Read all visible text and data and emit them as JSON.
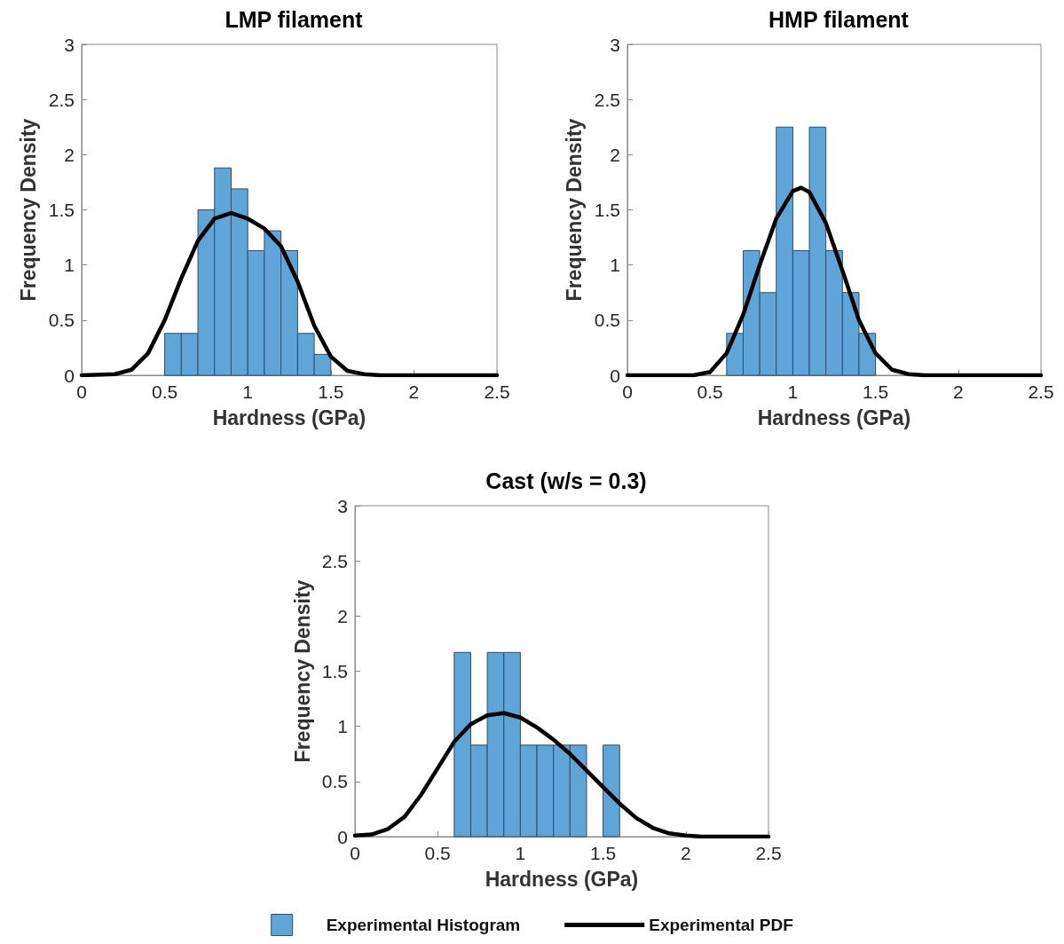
{
  "chart_data": [
    {
      "type": "histogram",
      "title": "LMP filament",
      "xlabel": "Hardness (GPa)",
      "ylabel": "Frequency Density",
      "xlim": [
        0,
        2.5
      ],
      "xticks": [
        0,
        0.5,
        1,
        1.5,
        2,
        2.5
      ],
      "ylim": [
        0,
        3
      ],
      "yticks": [
        0,
        0.5,
        1,
        1.5,
        2,
        2.5,
        3
      ],
      "grid": false,
      "legend": false,
      "series": [
        {
          "color": "#5fa5d8",
          "bins": [
            0.5,
            0.6,
            0.7,
            0.8,
            0.9,
            1.0,
            1.1,
            1.2,
            1.3,
            1.4,
            1.5
          ],
          "values": [
            0.38,
            0.38,
            1.5,
            1.88,
            1.69,
            1.13,
            1.31,
            1.13,
            0.38,
            0.19
          ]
        },
        {
          "type": "line",
          "color": "#000000",
          "x": [
            0,
            0.2,
            0.3,
            0.4,
            0.5,
            0.6,
            0.7,
            0.8,
            0.9,
            1.0,
            1.1,
            1.2,
            1.3,
            1.4,
            1.5,
            1.6,
            1.7,
            1.8,
            2.5
          ],
          "values": [
            0,
            0.01,
            0.05,
            0.2,
            0.5,
            0.88,
            1.22,
            1.42,
            1.47,
            1.42,
            1.33,
            1.17,
            0.85,
            0.45,
            0.17,
            0.04,
            0.01,
            0,
            0
          ]
        }
      ]
    },
    {
      "type": "histogram",
      "title": "HMP filament",
      "xlabel": "Hardness (GPa)",
      "ylabel": "Frequency Density",
      "xlim": [
        0,
        2.5
      ],
      "xticks": [
        0,
        0.5,
        1,
        1.5,
        2,
        2.5
      ],
      "ylim": [
        0,
        3
      ],
      "yticks": [
        0,
        0.5,
        1,
        1.5,
        2,
        2.5,
        3
      ],
      "grid": false,
      "legend": false,
      "series": [
        {
          "color": "#5fa5d8",
          "bins": [
            0.6,
            0.7,
            0.8,
            0.9,
            1.0,
            1.1,
            1.2,
            1.3,
            1.4,
            1.5
          ],
          "values": [
            0.38,
            1.13,
            0.75,
            2.25,
            1.13,
            2.25,
            1.13,
            0.75,
            0.38
          ]
        },
        {
          "type": "line",
          "color": "#000000",
          "x": [
            0,
            0.4,
            0.5,
            0.6,
            0.7,
            0.8,
            0.9,
            1.0,
            1.05,
            1.1,
            1.2,
            1.3,
            1.4,
            1.5,
            1.6,
            1.7,
            1.8,
            2.5
          ],
          "values": [
            0,
            0,
            0.03,
            0.2,
            0.55,
            1.0,
            1.42,
            1.67,
            1.7,
            1.66,
            1.38,
            0.95,
            0.5,
            0.2,
            0.05,
            0.01,
            0,
            0
          ]
        }
      ]
    },
    {
      "type": "histogram",
      "title": "Cast (w/s = 0.3)",
      "xlabel": "Hardness (GPa)",
      "ylabel": "Frequency Density",
      "xlim": [
        0,
        2.5
      ],
      "xticks": [
        0,
        0.5,
        1,
        1.5,
        2,
        2.5
      ],
      "ylim": [
        0,
        3
      ],
      "yticks": [
        0,
        0.5,
        1,
        1.5,
        2,
        2.5,
        3
      ],
      "grid": false,
      "legend": "bottom",
      "series": [
        {
          "name": "Experimental Histogram",
          "color": "#5fa5d8",
          "bins": [
            0.6,
            0.7,
            0.8,
            0.9,
            1.0,
            1.1,
            1.2,
            1.3,
            1.4,
            1.5,
            1.6
          ],
          "values": [
            1.67,
            0.83,
            1.67,
            1.67,
            0.83,
            0.83,
            0.83,
            0.83,
            0,
            0.83
          ]
        },
        {
          "type": "line",
          "name": "Experimental PDF",
          "color": "#000000",
          "x": [
            0,
            0.1,
            0.2,
            0.3,
            0.4,
            0.5,
            0.6,
            0.7,
            0.8,
            0.9,
            1.0,
            1.1,
            1.2,
            1.3,
            1.4,
            1.5,
            1.6,
            1.7,
            1.8,
            1.9,
            2.0,
            2.1,
            2.5
          ],
          "values": [
            0.01,
            0.02,
            0.07,
            0.18,
            0.38,
            0.62,
            0.86,
            1.02,
            1.1,
            1.12,
            1.08,
            0.99,
            0.88,
            0.75,
            0.6,
            0.45,
            0.3,
            0.17,
            0.08,
            0.03,
            0.01,
            0,
            0
          ]
        }
      ]
    }
  ]
}
